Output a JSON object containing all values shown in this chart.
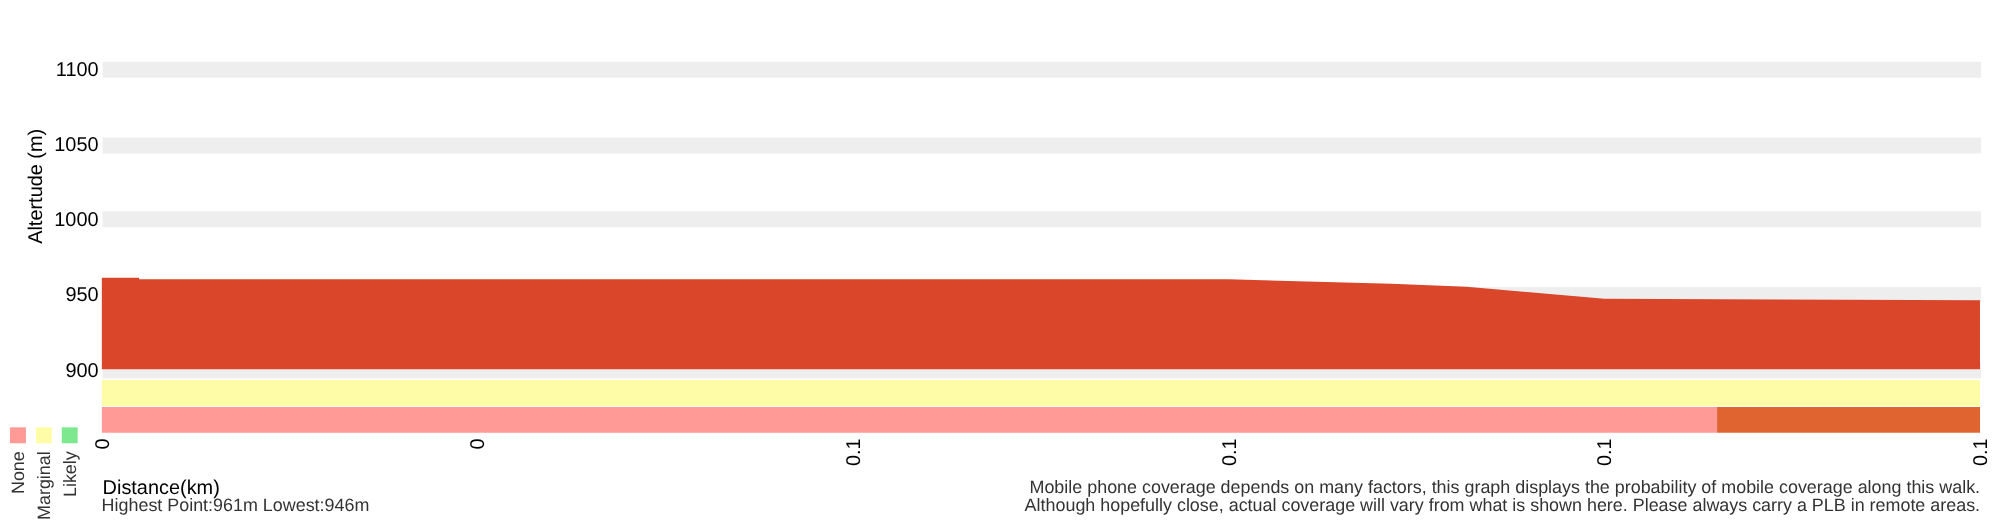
{
  "chart_data": [
    {
      "type": "area",
      "ylabel": "Altertude (m)",
      "x": [
        0,
        0.003,
        0.003,
        0.05,
        0.09,
        0.103,
        0.109,
        0.12,
        0.15
      ],
      "values": [
        961,
        961,
        960,
        960,
        960,
        957,
        955,
        947,
        946
      ],
      "color": "#d9462a",
      "xlim": [
        0,
        0.15
      ],
      "ylim": [
        900,
        1145
      ],
      "yticks": [
        900,
        950,
        1000,
        1050,
        1100
      ],
      "grid": "y",
      "tick_labels": "y"
    },
    {
      "type": "bar",
      "orientation": "horizontal",
      "stacked": true,
      "categories": [
        null,
        null
      ],
      "xlabel": "Distance(km)",
      "series": [
        {
          "name": "None",
          "color": "#ff9a96",
          "values": [
            null,
            0.129
          ]
        },
        {
          "name": "Marginal",
          "color": "#fffca8",
          "values": [
            0.15,
            null
          ]
        },
        {
          "name": "Likely",
          "color": "#7ee88f",
          "values": [
            null,
            null
          ]
        },
        {
          "color": "#e0642f",
          "values": [
            null,
            0.021
          ]
        }
      ],
      "xlim": [
        0,
        0.15
      ],
      "xticks": [
        {
          "value": 0,
          "label": "0"
        },
        {
          "value": 0.03,
          "label": "0"
        },
        {
          "value": 0.06,
          "label": "0.1"
        },
        {
          "value": 0.09,
          "label": "0.1"
        },
        {
          "value": 0.12,
          "label": "0.1"
        },
        {
          "value": 0.15,
          "label": "0.1"
        }
      ],
      "legend": "bottom left",
      "tick_labels": "x",
      "annotations": [
        "Highest Point:961m Lowest:946m",
        "Mobile phone coverage depends on many factors, this graph displays the probability of mobile coverage along this walk.",
        "Although hopefully close, actual coverage will vary from what is shown here. Please always carry a PLB in remote areas."
      ]
    }
  ]
}
